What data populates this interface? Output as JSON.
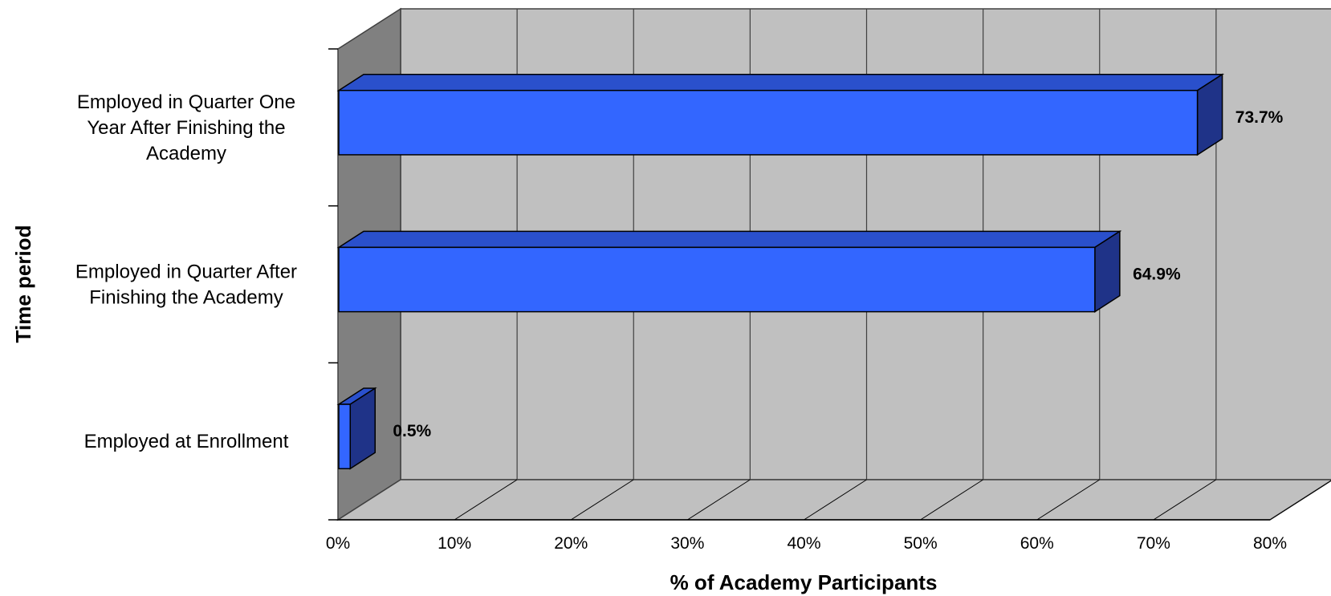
{
  "chart_data": {
    "type": "bar",
    "orientation": "horizontal",
    "style": "3d",
    "categories": [
      [
        "Employed in Quarter One",
        "Year After Finishing the",
        "Academy"
      ],
      [
        "Employed in Quarter After",
        "Finishing the Academy"
      ],
      [
        "Employed at Enrollment"
      ]
    ],
    "values": [
      73.7,
      64.9,
      0.5
    ],
    "data_labels": [
      "73.7%",
      "64.9%",
      "0.5%"
    ],
    "xlabel": "% of Academy Participants",
    "ylabel": "Time period",
    "xlim": [
      0,
      80
    ],
    "x_ticks": [
      "0%",
      "10%",
      "20%",
      "30%",
      "40%",
      "50%",
      "60%",
      "70%",
      "80%"
    ],
    "grid": true,
    "legend": false,
    "colors": {
      "bar_front": "#3366ff",
      "bar_top": "#2a50cc",
      "bar_side": "#1f3388",
      "back_wall": "#c0c0c0",
      "side_wall": "#808080",
      "floor": "#c0c0c0",
      "grid": "#404040"
    }
  }
}
